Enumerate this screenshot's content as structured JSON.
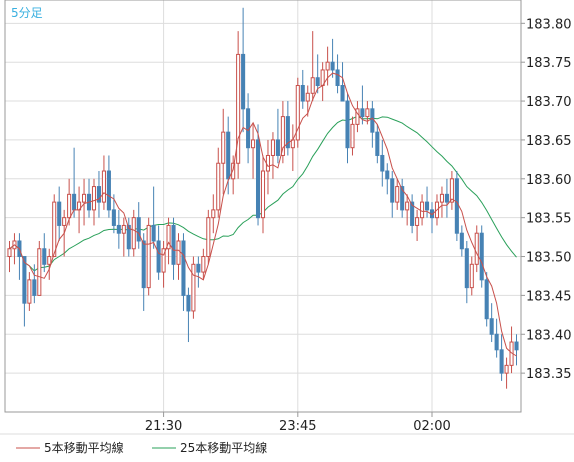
{
  "period_label": "5分足",
  "legend": [
    {
      "label": "5本移動平均線",
      "color": "#c8504b"
    },
    {
      "label": "25本移動平均線",
      "color": "#2aa05a"
    }
  ],
  "chart_data": {
    "type": "candlestick",
    "timeframe": "5分足",
    "ylim": [
      183.3,
      183.83
    ],
    "y_ticks": [
      "183.35",
      "183.40",
      "183.45",
      "183.50",
      "183.55",
      "183.60",
      "183.65",
      "183.70",
      "183.75",
      "183.80"
    ],
    "x_ticks": [
      {
        "label": "21:30",
        "index": 31
      },
      {
        "label": "23:45",
        "index": 58
      },
      {
        "label": "02:00",
        "index": 85
      }
    ],
    "bar_count": 103,
    "colors": {
      "up_candle": "#c8504b",
      "down_candle": "#4682b4",
      "ma5": "#c8504b",
      "ma25": "#2aa05a",
      "grid": "#dddddd"
    },
    "candles": [
      [
        183.5,
        183.52,
        183.48,
        183.51
      ],
      [
        183.51,
        183.53,
        183.49,
        183.52
      ],
      [
        183.52,
        183.53,
        183.47,
        183.5
      ],
      [
        183.5,
        183.5,
        183.41,
        183.44
      ],
      [
        183.44,
        183.48,
        183.43,
        183.47
      ],
      [
        183.47,
        183.49,
        183.44,
        183.45
      ],
      [
        183.45,
        183.52,
        183.45,
        183.51
      ],
      [
        183.51,
        183.53,
        183.48,
        183.49
      ],
      [
        183.49,
        183.51,
        183.47,
        183.5
      ],
      [
        183.5,
        183.58,
        183.5,
        183.57
      ],
      [
        183.57,
        183.59,
        183.52,
        183.54
      ],
      [
        183.54,
        183.56,
        183.5,
        183.55
      ],
      [
        183.55,
        183.6,
        183.54,
        183.58
      ],
      [
        183.58,
        183.64,
        183.55,
        183.56
      ],
      [
        183.56,
        183.59,
        183.53,
        183.57
      ],
      [
        183.57,
        183.6,
        183.54,
        183.58
      ],
      [
        183.58,
        183.6,
        183.55,
        183.56
      ],
      [
        183.56,
        183.6,
        183.54,
        183.59
      ],
      [
        183.59,
        183.61,
        183.55,
        183.57
      ],
      [
        183.57,
        183.63,
        183.56,
        183.61
      ],
      [
        183.61,
        183.63,
        183.55,
        183.56
      ],
      [
        183.56,
        183.58,
        183.53,
        183.54
      ],
      [
        183.54,
        183.56,
        183.51,
        183.53
      ],
      [
        183.53,
        183.55,
        183.5,
        183.54
      ],
      [
        183.54,
        183.55,
        183.5,
        183.51
      ],
      [
        183.51,
        183.56,
        183.5,
        183.55
      ],
      [
        183.55,
        183.57,
        183.51,
        183.52
      ],
      [
        183.52,
        183.53,
        183.43,
        183.46
      ],
      [
        183.46,
        183.55,
        183.45,
        183.54
      ],
      [
        183.54,
        183.59,
        183.51,
        183.52
      ],
      [
        183.52,
        183.54,
        183.47,
        183.48
      ],
      [
        183.48,
        183.52,
        183.46,
        183.51
      ],
      [
        183.51,
        183.55,
        183.49,
        183.54
      ],
      [
        183.54,
        183.55,
        183.47,
        183.49
      ],
      [
        183.49,
        183.53,
        183.47,
        183.52
      ],
      [
        183.52,
        183.53,
        183.43,
        183.45
      ],
      [
        183.45,
        183.46,
        183.39,
        183.43
      ],
      [
        183.43,
        183.5,
        183.42,
        183.49
      ],
      [
        183.49,
        183.5,
        183.46,
        183.48
      ],
      [
        183.48,
        183.51,
        183.47,
        183.5
      ],
      [
        183.5,
        183.56,
        183.49,
        183.55
      ],
      [
        183.55,
        183.58,
        183.53,
        183.56
      ],
      [
        183.56,
        183.64,
        183.55,
        183.62
      ],
      [
        183.62,
        183.69,
        183.58,
        183.66
      ],
      [
        183.66,
        183.68,
        183.58,
        183.6
      ],
      [
        183.6,
        183.63,
        183.58,
        183.62
      ],
      [
        183.62,
        183.79,
        183.6,
        183.76
      ],
      [
        183.76,
        183.82,
        183.66,
        183.69
      ],
      [
        183.69,
        183.71,
        183.62,
        183.64
      ],
      [
        183.64,
        183.67,
        183.6,
        183.65
      ],
      [
        183.65,
        183.67,
        183.54,
        183.55
      ],
      [
        183.55,
        183.63,
        183.53,
        183.61
      ],
      [
        183.61,
        183.65,
        183.58,
        183.63
      ],
      [
        183.63,
        183.66,
        183.6,
        183.65
      ],
      [
        183.65,
        183.69,
        183.62,
        183.63
      ],
      [
        183.63,
        183.7,
        183.62,
        183.68
      ],
      [
        183.68,
        183.7,
        183.63,
        183.64
      ],
      [
        183.64,
        183.67,
        183.61,
        183.65
      ],
      [
        183.65,
        183.73,
        183.64,
        183.72
      ],
      [
        183.72,
        183.74,
        183.69,
        183.7
      ],
      [
        183.7,
        183.72,
        183.68,
        183.71
      ],
      [
        183.71,
        183.79,
        183.7,
        183.73
      ],
      [
        183.73,
        183.76,
        183.71,
        183.72
      ],
      [
        183.72,
        183.75,
        183.7,
        183.74
      ],
      [
        183.74,
        183.77,
        183.72,
        183.75
      ],
      [
        183.75,
        183.78,
        183.73,
        183.74
      ],
      [
        183.74,
        183.76,
        183.71,
        183.72
      ],
      [
        183.72,
        183.75,
        183.7,
        183.7
      ],
      [
        183.7,
        183.71,
        183.62,
        183.64
      ],
      [
        183.64,
        183.68,
        183.63,
        183.67
      ],
      [
        183.67,
        183.7,
        183.66,
        183.69
      ],
      [
        183.69,
        183.72,
        183.67,
        183.68
      ],
      [
        183.68,
        183.7,
        183.67,
        183.69
      ],
      [
        183.69,
        183.7,
        183.64,
        183.66
      ],
      [
        183.66,
        183.67,
        183.62,
        183.63
      ],
      [
        183.63,
        183.65,
        183.59,
        183.61
      ],
      [
        183.61,
        183.62,
        183.58,
        183.6
      ],
      [
        183.6,
        183.61,
        183.55,
        183.57
      ],
      [
        183.57,
        183.6,
        183.56,
        183.59
      ],
      [
        183.59,
        183.6,
        183.55,
        183.56
      ],
      [
        183.56,
        183.58,
        183.54,
        183.57
      ],
      [
        183.57,
        183.58,
        183.53,
        183.54
      ],
      [
        183.54,
        183.56,
        183.52,
        183.55
      ],
      [
        183.55,
        183.58,
        183.54,
        183.57
      ],
      [
        183.57,
        183.59,
        183.55,
        183.56
      ],
      [
        183.56,
        183.57,
        183.53,
        183.55
      ],
      [
        183.55,
        183.58,
        183.54,
        183.57
      ],
      [
        183.57,
        183.59,
        183.55,
        183.58
      ],
      [
        183.58,
        183.6,
        183.55,
        183.57
      ],
      [
        183.57,
        183.61,
        183.56,
        183.6
      ],
      [
        183.6,
        183.61,
        183.52,
        183.53
      ],
      [
        183.53,
        183.54,
        183.5,
        183.51
      ],
      [
        183.51,
        183.52,
        183.44,
        183.46
      ],
      [
        183.46,
        183.5,
        183.45,
        183.49
      ],
      [
        183.49,
        183.54,
        183.48,
        183.53
      ],
      [
        183.53,
        183.54,
        183.46,
        183.47
      ],
      [
        183.47,
        183.48,
        183.41,
        183.42
      ],
      [
        183.42,
        183.44,
        183.39,
        183.4
      ],
      [
        183.4,
        183.42,
        183.37,
        183.38
      ],
      [
        183.38,
        183.4,
        183.34,
        183.35
      ],
      [
        183.35,
        183.37,
        183.33,
        183.36
      ],
      [
        183.36,
        183.41,
        183.35,
        183.39
      ],
      [
        183.39,
        183.4,
        183.36,
        183.38
      ]
    ]
  }
}
